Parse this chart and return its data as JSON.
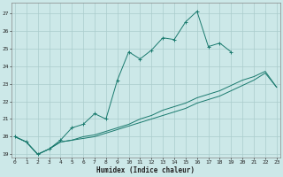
{
  "title": "",
  "xlabel": "Humidex (Indice chaleur)",
  "ylabel": "",
  "x_ticks": [
    0,
    1,
    2,
    3,
    4,
    5,
    6,
    7,
    8,
    9,
    10,
    11,
    12,
    13,
    14,
    15,
    16,
    17,
    18,
    19,
    20,
    21,
    22,
    23
  ],
  "y_ticks": [
    19,
    20,
    21,
    22,
    23,
    24,
    25,
    26,
    27
  ],
  "xlim": [
    -0.3,
    23.3
  ],
  "ylim": [
    18.8,
    27.6
  ],
  "bg_color": "#cce8e8",
  "grid_color": "#aacccc",
  "line_color": "#1a7a6e",
  "series": [
    {
      "x": [
        0,
        1,
        2,
        3,
        4,
        5,
        6,
        7,
        8,
        9,
        10,
        11,
        12,
        13,
        14,
        15,
        16,
        17,
        18,
        19
      ],
      "y": [
        20.0,
        19.7,
        19.0,
        19.3,
        19.8,
        20.5,
        20.7,
        21.3,
        21.0,
        23.2,
        24.8,
        24.4,
        24.9,
        25.6,
        25.5,
        26.5,
        27.1,
        25.1,
        25.3,
        24.8
      ],
      "marker": "+"
    },
    {
      "x": [
        0,
        1,
        2,
        3,
        4,
        5,
        6,
        7,
        8,
        9,
        10,
        11,
        12,
        13,
        14,
        15,
        16,
        17,
        18,
        19,
        20,
        21,
        22,
        23
      ],
      "y": [
        20.0,
        19.7,
        19.0,
        19.3,
        19.7,
        19.8,
        19.9,
        20.0,
        20.2,
        20.4,
        20.6,
        20.8,
        21.0,
        21.2,
        21.4,
        21.6,
        21.9,
        22.1,
        22.3,
        22.6,
        22.9,
        23.2,
        23.6,
        22.8
      ],
      "marker": null
    },
    {
      "x": [
        0,
        1,
        2,
        3,
        4,
        5,
        6,
        7,
        8,
        9,
        10,
        11,
        12,
        13,
        14,
        15,
        16,
        17,
        18,
        19,
        20,
        21,
        22,
        23
      ],
      "y": [
        20.0,
        19.7,
        19.0,
        19.3,
        19.7,
        19.8,
        20.0,
        20.1,
        20.3,
        20.5,
        20.7,
        21.0,
        21.2,
        21.5,
        21.7,
        21.9,
        22.2,
        22.4,
        22.6,
        22.9,
        23.2,
        23.4,
        23.7,
        22.8
      ],
      "marker": null
    }
  ]
}
